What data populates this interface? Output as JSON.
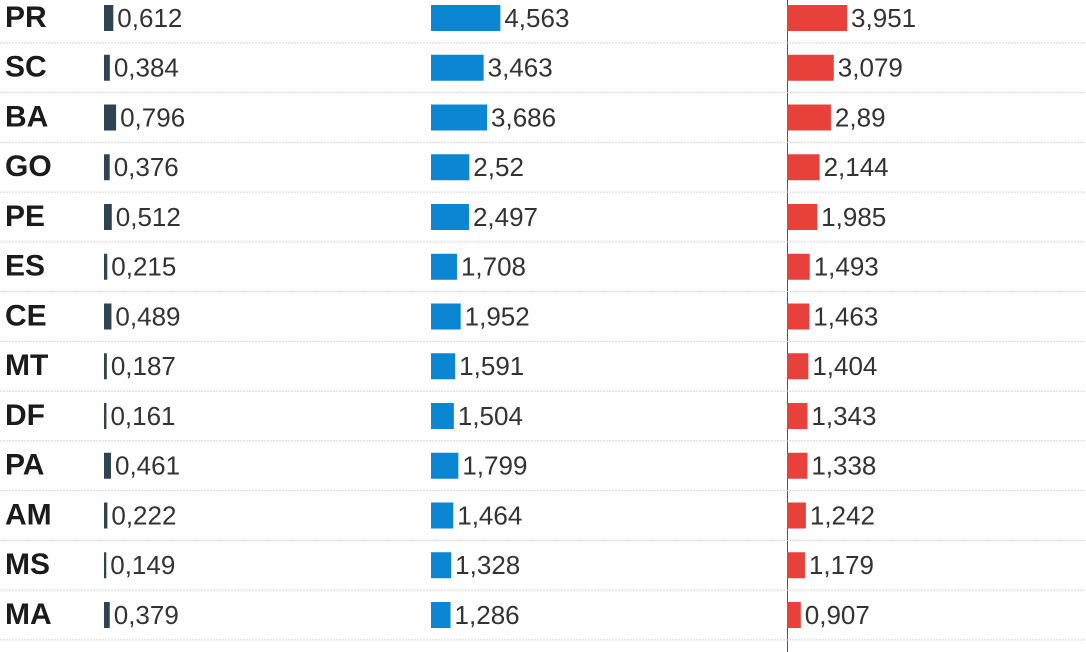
{
  "chart_data": {
    "type": "bar",
    "categories": [
      "PR",
      "SC",
      "BA",
      "GO",
      "PE",
      "ES",
      "CE",
      "MT",
      "DF",
      "PA",
      "AM",
      "MS",
      "MA"
    ],
    "series": [
      {
        "color": "#2f4350",
        "values": [
          0.612,
          0.384,
          0.796,
          0.376,
          0.512,
          0.215,
          0.489,
          0.187,
          0.161,
          0.461,
          0.222,
          0.149,
          0.379
        ],
        "value_labels": [
          "0,612",
          "0,384",
          "0,796",
          "0,376",
          "0,512",
          "0,215",
          "0,489",
          "0,187",
          "0,161",
          "0,461",
          "0,222",
          "0,149",
          "0,379"
        ]
      },
      {
        "color": "#0a86d2",
        "values": [
          4.563,
          3.463,
          3.686,
          2.52,
          2.497,
          1.708,
          1.952,
          1.591,
          1.504,
          1.799,
          1.464,
          1.328,
          1.286
        ],
        "value_labels": [
          "4,563",
          "3,463",
          "3,686",
          "2,52",
          "2,497",
          "1,708",
          "1,952",
          "1,591",
          "1,504",
          "1,799",
          "1,464",
          "1,328",
          "1,286"
        ]
      },
      {
        "color": "#e8413c",
        "values": [
          3.951,
          3.079,
          2.89,
          2.144,
          1.985,
          1.493,
          1.463,
          1.404,
          1.343,
          1.338,
          1.242,
          1.179,
          0.907
        ],
        "value_labels": [
          "3,951",
          "3,079",
          "2,89",
          "2,144",
          "1,985",
          "1,493",
          "1,463",
          "1,404",
          "1,343",
          "1,338",
          "1,242",
          "1,179",
          "0,907"
        ]
      }
    ]
  }
}
